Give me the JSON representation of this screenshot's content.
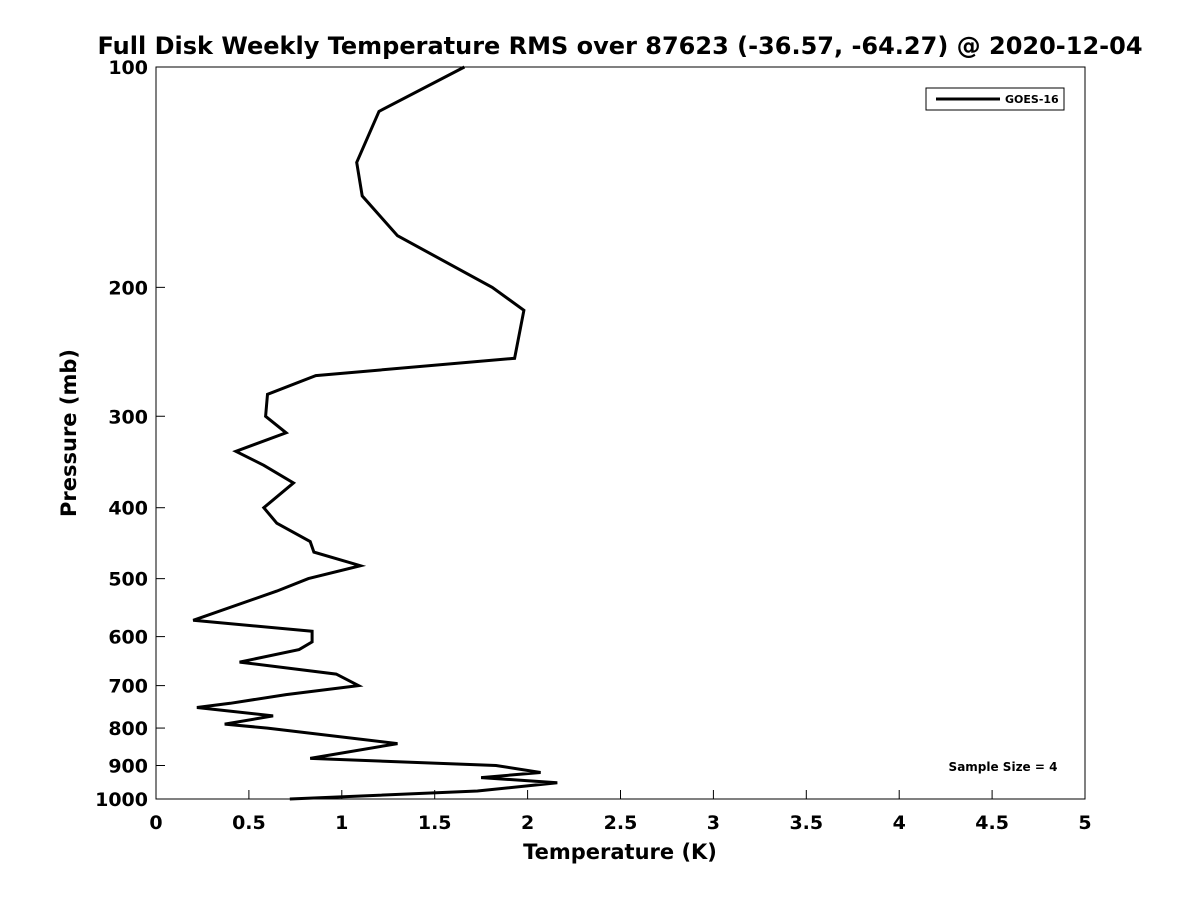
{
  "chart_data": {
    "type": "line",
    "title": "Full Disk Weekly Temperature RMS over 87623 (-36.57, -64.27) @ 2020-12-04",
    "xlabel": "Temperature (K)",
    "ylabel": "Pressure (mb)",
    "xlim": [
      0,
      5
    ],
    "ylim": [
      100,
      1000
    ],
    "yscale": "log",
    "yreversed": true,
    "grid": false,
    "legend_position": "top-right",
    "x_ticks": [
      "0",
      "0.5",
      "1",
      "1.5",
      "2",
      "2.5",
      "3",
      "3.5",
      "4",
      "4.5",
      "5"
    ],
    "x_tick_values": [
      0,
      0.5,
      1,
      1.5,
      2,
      2.5,
      3,
      3.5,
      4,
      4.5,
      5
    ],
    "y_ticks": [
      "100",
      "200",
      "300",
      "400",
      "500",
      "600",
      "700",
      "800",
      "900",
      "1000"
    ],
    "y_tick_values": [
      100,
      200,
      300,
      400,
      500,
      600,
      700,
      800,
      900,
      1000
    ],
    "series": [
      {
        "name": "GOES-16",
        "color": "#000000",
        "points": [
          [
            1.66,
            100
          ],
          [
            1.2,
            115
          ],
          [
            1.08,
            135
          ],
          [
            1.11,
            150
          ],
          [
            1.3,
            170
          ],
          [
            1.81,
            200
          ],
          [
            1.98,
            215
          ],
          [
            1.93,
            250
          ],
          [
            0.86,
            264
          ],
          [
            0.6,
            280
          ],
          [
            0.59,
            300
          ],
          [
            0.7,
            316
          ],
          [
            0.43,
            335
          ],
          [
            0.58,
            350
          ],
          [
            0.74,
            370
          ],
          [
            0.58,
            400
          ],
          [
            0.65,
            420
          ],
          [
            0.83,
            445
          ],
          [
            0.85,
            460
          ],
          [
            1.1,
            480
          ],
          [
            0.82,
            500
          ],
          [
            0.65,
            520
          ],
          [
            0.2,
            570
          ],
          [
            0.84,
            590
          ],
          [
            0.84,
            610
          ],
          [
            0.77,
            625
          ],
          [
            0.45,
            650
          ],
          [
            0.97,
            675
          ],
          [
            1.09,
            700
          ],
          [
            0.7,
            720
          ],
          [
            0.4,
            740
          ],
          [
            0.22,
            750
          ],
          [
            0.63,
            770
          ],
          [
            0.37,
            790
          ],
          [
            0.6,
            800
          ],
          [
            1.3,
            840
          ],
          [
            0.83,
            880
          ],
          [
            1.83,
            900
          ],
          [
            2.07,
            920
          ],
          [
            1.75,
            935
          ],
          [
            2.16,
            950
          ],
          [
            1.73,
            975
          ],
          [
            0.72,
            1000
          ]
        ]
      }
    ],
    "annotation": "Sample Size = 4"
  }
}
